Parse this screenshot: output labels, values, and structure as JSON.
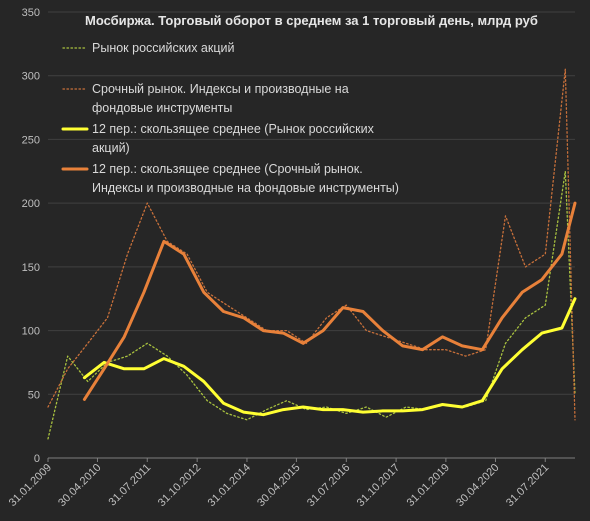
{
  "chart_data": {
    "type": "line",
    "title": "Мосбиржа. Торговый оборот в среднем за 1 торговый день, млрд руб",
    "ylim": [
      0,
      350
    ],
    "yticks": [
      0,
      50,
      100,
      150,
      200,
      250,
      300,
      350
    ],
    "xlim": [
      "2009-01-31",
      "2022-04-30"
    ],
    "xticks": [
      "31.01.2009",
      "30.04.2010",
      "31.07.2011",
      "31.10.2012",
      "31.01.2014",
      "30.04.2015",
      "31.07.2016",
      "31.10.2017",
      "31.01.2019",
      "30.04.2020",
      "31.07.2021"
    ],
    "grid": true,
    "legend_position": "top-left",
    "series": [
      {
        "name": "Рынок российских акций",
        "style": "dotted",
        "color": "#a9c23f",
        "x": [
          "2009-01-31",
          "2009-07-31",
          "2010-01-31",
          "2010-07-31",
          "2011-01-31",
          "2011-07-31",
          "2012-01-31",
          "2012-07-31",
          "2013-01-31",
          "2013-07-31",
          "2014-01-31",
          "2014-07-31",
          "2015-01-31",
          "2015-07-31",
          "2016-01-31",
          "2016-07-31",
          "2017-01-31",
          "2017-07-31",
          "2018-01-31",
          "2018-07-31",
          "2019-01-31",
          "2019-07-31",
          "2020-01-31",
          "2020-07-31",
          "2021-01-31",
          "2021-07-31",
          "2022-01-31",
          "2022-04-30"
        ],
        "y": [
          15,
          80,
          60,
          75,
          80,
          90,
          80,
          65,
          45,
          35,
          30,
          38,
          45,
          38,
          40,
          35,
          40,
          32,
          40,
          38,
          42,
          40,
          45,
          90,
          110,
          120,
          225,
          50
        ]
      },
      {
        "name": "Срочный рынок. Индексы и производные на фондовые инструменты",
        "style": "dotted",
        "color": "#c8703a",
        "x": [
          "2009-01-31",
          "2009-07-31",
          "2010-01-31",
          "2010-07-31",
          "2011-01-31",
          "2011-07-31",
          "2012-01-31",
          "2012-07-31",
          "2013-01-31",
          "2013-07-31",
          "2014-01-31",
          "2014-07-31",
          "2015-01-31",
          "2015-07-31",
          "2016-01-31",
          "2016-07-31",
          "2017-01-31",
          "2017-07-31",
          "2018-01-31",
          "2018-07-31",
          "2019-01-31",
          "2019-07-31",
          "2020-01-31",
          "2020-07-31",
          "2021-01-31",
          "2021-07-31",
          "2022-01-31",
          "2022-04-30"
        ],
        "y": [
          40,
          70,
          90,
          110,
          160,
          200,
          170,
          160,
          130,
          120,
          110,
          100,
          100,
          90,
          110,
          120,
          100,
          95,
          90,
          85,
          85,
          80,
          85,
          190,
          150,
          160,
          305,
          30
        ]
      },
      {
        "name": "12 пер.: скользящее среднее (Рынок российских акций)",
        "style": "solid",
        "color": "#ffff33",
        "x": [
          "2009-12-31",
          "2010-06-30",
          "2010-12-31",
          "2011-06-30",
          "2011-12-31",
          "2012-06-30",
          "2012-12-31",
          "2013-06-30",
          "2013-12-31",
          "2014-06-30",
          "2014-12-31",
          "2015-06-30",
          "2015-12-31",
          "2016-06-30",
          "2016-12-31",
          "2017-06-30",
          "2017-12-31",
          "2018-06-30",
          "2018-12-31",
          "2019-06-30",
          "2019-12-31",
          "2020-06-30",
          "2020-12-31",
          "2021-06-30",
          "2021-12-31",
          "2022-04-30"
        ],
        "y": [
          63,
          75,
          70,
          70,
          78,
          72,
          60,
          43,
          36,
          34,
          38,
          40,
          38,
          38,
          36,
          37,
          37,
          38,
          42,
          40,
          45,
          70,
          85,
          98,
          102,
          125
        ]
      },
      {
        "name": "12 пер.: скользящее среднее (Срочный рынок. Индексы и производные на фондовые инструменты)",
        "style": "solid",
        "color": "#e8813a",
        "x": [
          "2009-12-31",
          "2010-06-30",
          "2010-12-31",
          "2011-06-30",
          "2011-12-31",
          "2012-06-30",
          "2012-12-31",
          "2013-06-30",
          "2013-12-31",
          "2014-06-30",
          "2014-12-31",
          "2015-06-30",
          "2015-12-31",
          "2016-06-30",
          "2016-12-31",
          "2017-06-30",
          "2017-12-31",
          "2018-06-30",
          "2018-12-31",
          "2019-06-30",
          "2019-12-31",
          "2020-06-30",
          "2020-12-31",
          "2021-06-30",
          "2021-12-31",
          "2022-04-30"
        ],
        "y": [
          46,
          70,
          95,
          130,
          170,
          160,
          130,
          115,
          110,
          100,
          98,
          90,
          100,
          118,
          115,
          100,
          88,
          85,
          95,
          88,
          85,
          110,
          130,
          140,
          160,
          200
        ]
      }
    ]
  }
}
